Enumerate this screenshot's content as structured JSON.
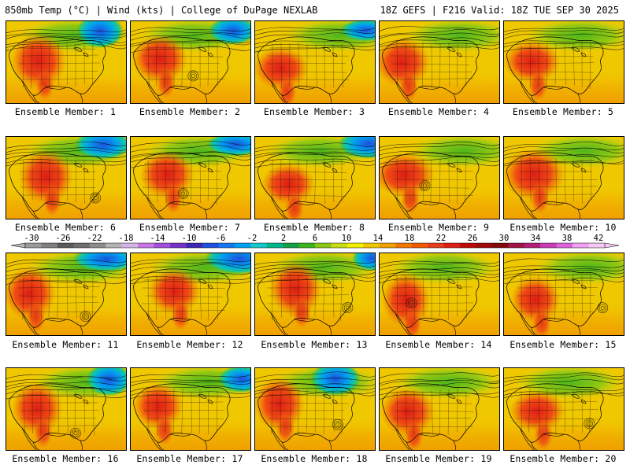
{
  "header": {
    "left_title": "850mb Temp (°C) | Wind (kts) | College of DuPage NEXLAB",
    "right_title": "18Z GEFS | F216 Valid: 18Z TUE SEP 30 2025"
  },
  "panels": [
    {
      "label": "Ensemble Member: 1"
    },
    {
      "label": "Ensemble Member: 2"
    },
    {
      "label": "Ensemble Member: 3"
    },
    {
      "label": "Ensemble Member: 4"
    },
    {
      "label": "Ensemble Member: 5"
    },
    {
      "label": "Ensemble Member: 6"
    },
    {
      "label": "Ensemble Member: 7"
    },
    {
      "label": "Ensemble Member: 8"
    },
    {
      "label": "Ensemble Member: 9"
    },
    {
      "label": "Ensemble Member: 10"
    },
    {
      "label": "Ensemble Member: 11"
    },
    {
      "label": "Ensemble Member: 12"
    },
    {
      "label": "Ensemble Member: 13"
    },
    {
      "label": "Ensemble Member: 14"
    },
    {
      "label": "Ensemble Member: 15"
    },
    {
      "label": "Ensemble Member: 16"
    },
    {
      "label": "Ensemble Member: 17"
    },
    {
      "label": "Ensemble Member: 18"
    },
    {
      "label": "Ensemble Member: 19"
    },
    {
      "label": "Ensemble Member: 20"
    }
  ],
  "color_scale": {
    "labels": [
      "-30",
      "-26",
      "-22",
      "-18",
      "-14",
      "-10",
      "-6",
      "-2",
      "2",
      "6",
      "10",
      "14",
      "18",
      "22",
      "26",
      "30",
      "34",
      "38",
      "42"
    ],
    "colors": [
      "#9a9a9a",
      "#808080",
      "#5a5a5a",
      "#6e6e6e",
      "#8c8c8c",
      "#b4b4b4",
      "#d2b4e6",
      "#c878e6",
      "#a050dc",
      "#7832c8",
      "#3c28b4",
      "#1e50dc",
      "#1478f0",
      "#00a0f0",
      "#14c8c8",
      "#00b48c",
      "#14a046",
      "#3cb41e",
      "#8cc814",
      "#c8dc14",
      "#f0f000",
      "#f0c800",
      "#f0a000",
      "#f07800",
      "#f05a00",
      "#e63c1e",
      "#dc1e14",
      "#be0a0a",
      "#a00a0a",
      "#820a0a",
      "#a01446",
      "#b41e78",
      "#c83cb4",
      "#dc64dc",
      "#f0a0f0",
      "#f5c8f5"
    ]
  }
}
